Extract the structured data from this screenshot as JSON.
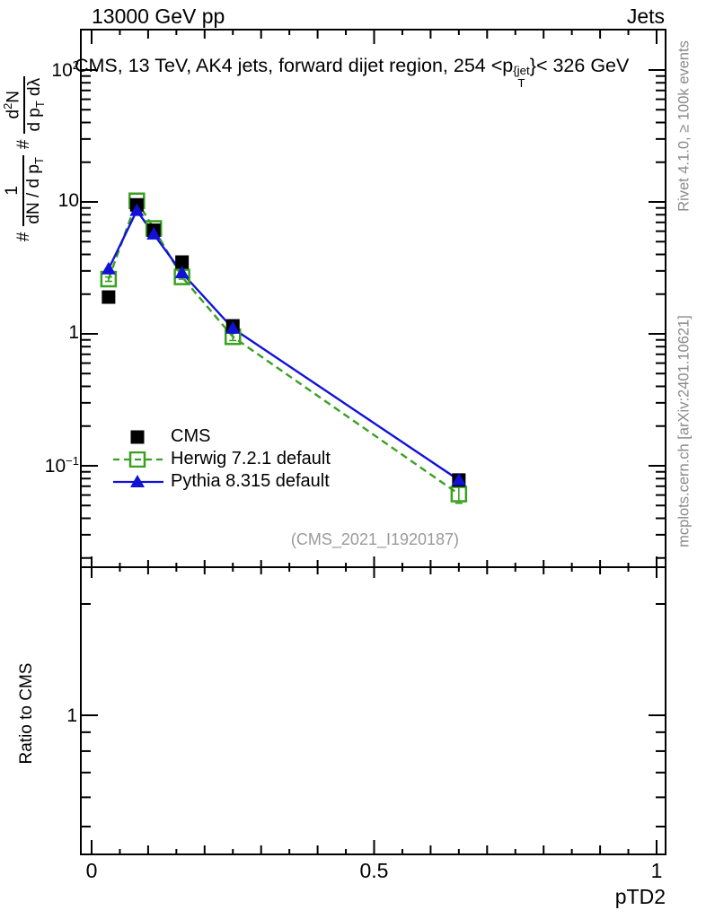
{
  "header": {
    "left": "13000 GeV pp",
    "right": "Jets"
  },
  "title": {
    "pre": "CMS, 13 TeV, AK4 jets, forward dijet region, 254 <p",
    "sup": "{jet",
    "sub": "T",
    "post": "}< 326 GeV"
  },
  "ylabel": {
    "hash1": "#",
    "frac1_num": "1",
    "frac1_den_a": "dN / d p",
    "frac1_den_sub": "T",
    "hash2": "#",
    "frac2_num_a": "d",
    "frac2_num_sup": "2",
    "frac2_num_b": "N",
    "frac2_den_a": "d p",
    "frac2_den_sub": "T",
    "frac2_den_b": " dλ"
  },
  "sidebar_right": {
    "top": "Rivet 4.1.0, ≥ 100k events",
    "bottom": "mcplots.cern.ch [arXiv:2401.10621]"
  },
  "watermark": "(CMS_2021_I1920187)",
  "ratio": {
    "label": "Ratio to CMS",
    "tick": "1"
  },
  "xlabel": "pTD2",
  "chart_data": {
    "type": "line",
    "title": "CMS, 13 TeV, AK4 jets, forward dijet region, 254 < pT{jet} < 326 GeV",
    "xlabel": "pTD2",
    "ylabel": "# 1/(dN/dpT) # d2N/(dpT dlambda)",
    "x": [
      0.03,
      0.08,
      0.11,
      0.16,
      0.25,
      0.65
    ],
    "series": [
      {
        "name": "CMS",
        "color": "#000000",
        "marker": "square-filled",
        "line": "none",
        "values": [
          1.9,
          9.5,
          6.1,
          3.5,
          1.15,
          0.078
        ]
      },
      {
        "name": "Herwig 7.2.1 default",
        "color": "#3aa020",
        "marker": "square-open",
        "line": "dashed",
        "values": [
          2.6,
          10.2,
          6.3,
          2.7,
          0.95,
          0.061
        ],
        "yerr": [
          0.1,
          0.25,
          0.18,
          0.1,
          0.06,
          0.009
        ]
      },
      {
        "name": "Pythia 8.315 default",
        "color": "#1212d6",
        "marker": "triangle-filled",
        "line": "solid",
        "values": [
          3.1,
          8.6,
          5.7,
          2.9,
          1.1,
          0.078
        ]
      }
    ],
    "xlim": [
      0,
      1
    ],
    "x_ticks": [
      0,
      0.5,
      1
    ],
    "x_minor_step": 0.05,
    "main_y_log": true,
    "main_ylim": [
      0.017,
      200
    ],
    "y_ticks": [
      {
        "t": "10",
        "e": "2",
        "v": 100
      },
      {
        "t": "10",
        "e": "",
        "v": 10
      },
      {
        "t": "1",
        "e": "",
        "v": 1
      },
      {
        "t": "10",
        "e": "−1",
        "v": 0.1
      }
    ],
    "ratio_y_log": true,
    "ratio_ylim": [
      0.42,
      2.5
    ],
    "ratio_ticks_major": [
      1
    ],
    "ratio_ticks_minor": [
      0.5,
      0.6,
      0.7,
      0.8,
      0.9,
      2
    ],
    "legend_position": "left-middle",
    "grid": false
  }
}
